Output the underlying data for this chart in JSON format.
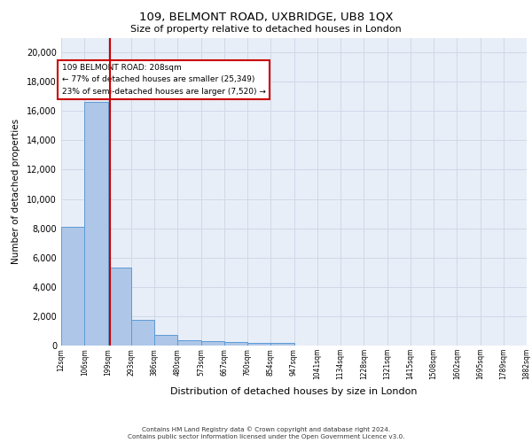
{
  "title1": "109, BELMONT ROAD, UXBRIDGE, UB8 1QX",
  "title2": "Size of property relative to detached houses in London",
  "xlabel": "Distribution of detached houses by size in London",
  "ylabel": "Number of detached properties",
  "bar_edges": [
    12,
    106,
    199,
    293,
    386,
    480,
    573,
    667,
    760,
    854,
    947,
    1041,
    1134,
    1228,
    1321,
    1415,
    1508,
    1602,
    1695,
    1789,
    1882
  ],
  "bar_heights": [
    8100,
    16600,
    5300,
    1750,
    700,
    360,
    290,
    230,
    200,
    180,
    0,
    0,
    0,
    0,
    0,
    0,
    0,
    0,
    0,
    0
  ],
  "bar_color": "#aec6e8",
  "bar_edge_color": "#5b9bd5",
  "vline_x": 208,
  "vline_color": "#cc0000",
  "annotation_text": "109 BELMONT ROAD: 208sqm\n← 77% of detached houses are smaller (25,349)\n23% of semi-detached houses are larger (7,520) →",
  "annotation_box_color": "#cc0000",
  "ylim": [
    0,
    21000
  ],
  "yticks": [
    0,
    2000,
    4000,
    6000,
    8000,
    10000,
    12000,
    14000,
    16000,
    18000,
    20000
  ],
  "xtick_labels": [
    "12sqm",
    "106sqm",
    "199sqm",
    "293sqm",
    "386sqm",
    "480sqm",
    "573sqm",
    "667sqm",
    "760sqm",
    "854sqm",
    "947sqm",
    "1041sqm",
    "1134sqm",
    "1228sqm",
    "1321sqm",
    "1415sqm",
    "1508sqm",
    "1602sqm",
    "1695sqm",
    "1789sqm",
    "1882sqm"
  ],
  "grid_color": "#d0d8e8",
  "bg_color": "#e8eef8",
  "footer1": "Contains HM Land Registry data © Crown copyright and database right 2024.",
  "footer2": "Contains public sector information licensed under the Open Government Licence v3.0."
}
